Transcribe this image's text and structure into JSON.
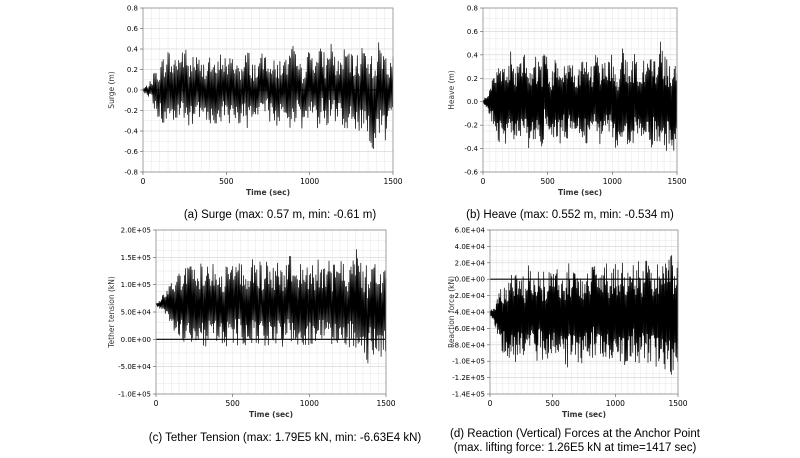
{
  "chart_data": [
    {
      "id": "surge",
      "type": "line",
      "caption": "(a) Surge (max: 0.57 m, min: -0.61 m)",
      "xlabel": "Time (sec)",
      "ylabel": "Surge (m)",
      "xlim": [
        0,
        1500
      ],
      "ylim": [
        -0.8,
        0.8
      ],
      "xticks": [
        0,
        500,
        1000,
        1500
      ],
      "xtick_labels": [
        "0",
        "500",
        "1000",
        "1500"
      ],
      "yticks": [
        -0.8,
        -0.6,
        -0.4,
        -0.2,
        0.0,
        0.2,
        0.4,
        0.6,
        0.8
      ],
      "ytick_labels": [
        "-0.8",
        "-0.6",
        "-0.4",
        "-0.2",
        "0.0",
        "0.2",
        "0.4",
        "0.6",
        "0.8"
      ],
      "grid": true,
      "baseline": 0,
      "series": [
        {
          "x": [
            0,
            25,
            50,
            75,
            100,
            125,
            150,
            175,
            200,
            225,
            250,
            275,
            300,
            325,
            350,
            375,
            400,
            425,
            450,
            475,
            500,
            525,
            550,
            575,
            600,
            625,
            650,
            675,
            700,
            725,
            750,
            775,
            800,
            825,
            850,
            875,
            900,
            925,
            950,
            975,
            1000,
            1025,
            1050,
            1075,
            1100,
            1125,
            1150,
            1175,
            1200,
            1225,
            1250,
            1275,
            1300,
            1325,
            1350,
            1375,
            1400,
            1425,
            1450,
            1475,
            1500
          ],
          "max": [
            0.02,
            0.05,
            0.1,
            0.22,
            0.25,
            0.35,
            0.42,
            0.3,
            0.38,
            0.4,
            0.45,
            0.3,
            0.38,
            0.35,
            0.28,
            0.3,
            0.38,
            0.25,
            0.3,
            0.42,
            0.32,
            0.33,
            0.35,
            0.3,
            0.25,
            0.45,
            0.3,
            0.28,
            0.33,
            0.38,
            0.42,
            0.3,
            0.28,
            0.35,
            0.3,
            0.38,
            0.45,
            0.3,
            0.25,
            0.35,
            0.4,
            0.42,
            0.38,
            0.45,
            0.3,
            0.57,
            0.35,
            0.3,
            0.38,
            0.45,
            0.35,
            0.3,
            0.42,
            0.5,
            0.48,
            0.35,
            0.45,
            0.5,
            0.42,
            0.4,
            0.35
          ],
          "min": [
            -0.02,
            -0.05,
            -0.1,
            -0.25,
            -0.3,
            -0.38,
            -0.35,
            -0.3,
            -0.38,
            -0.35,
            -0.3,
            -0.42,
            -0.38,
            -0.3,
            -0.35,
            -0.28,
            -0.32,
            -0.4,
            -0.3,
            -0.35,
            -0.3,
            -0.36,
            -0.3,
            -0.34,
            -0.28,
            -0.42,
            -0.3,
            -0.35,
            -0.3,
            -0.35,
            -0.32,
            -0.3,
            -0.4,
            -0.35,
            -0.3,
            -0.38,
            -0.35,
            -0.28,
            -0.42,
            -0.35,
            -0.3,
            -0.35,
            -0.38,
            -0.3,
            -0.4,
            -0.35,
            -0.32,
            -0.3,
            -0.35,
            -0.42,
            -0.3,
            -0.38,
            -0.48,
            -0.45,
            -0.52,
            -0.58,
            -0.61,
            -0.5,
            -0.55,
            -0.45,
            -0.4
          ]
        }
      ]
    },
    {
      "id": "heave",
      "type": "line",
      "caption": "(b) Heave (max: 0.552 m, min: -0.534 m)",
      "xlabel": "Time (sec)",
      "ylabel": "Heave (m)",
      "xlim": [
        0,
        1500
      ],
      "ylim": [
        -0.6,
        0.8
      ],
      "xticks": [
        0,
        500,
        1000,
        1500
      ],
      "xtick_labels": [
        "0",
        "500",
        "1000",
        "1500"
      ],
      "yticks": [
        -0.6,
        -0.4,
        -0.2,
        0.0,
        0.2,
        0.4,
        0.6,
        0.8
      ],
      "ytick_labels": [
        "-0.6",
        "-0.4",
        "-0.2",
        "0.0",
        "0.2",
        "0.4",
        "0.6",
        "0.8"
      ],
      "grid": true,
      "baseline": 0,
      "series": [
        {
          "x": [
            0,
            25,
            50,
            75,
            100,
            125,
            150,
            175,
            200,
            225,
            250,
            275,
            300,
            325,
            350,
            375,
            400,
            425,
            450,
            475,
            500,
            525,
            550,
            575,
            600,
            625,
            650,
            675,
            700,
            725,
            750,
            775,
            800,
            825,
            850,
            875,
            900,
            925,
            950,
            975,
            1000,
            1025,
            1050,
            1075,
            1100,
            1125,
            1150,
            1175,
            1200,
            1225,
            1250,
            1275,
            1300,
            1325,
            1350,
            1375,
            1400,
            1425,
            1450,
            1475,
            1500
          ],
          "max": [
            0.02,
            0.05,
            0.12,
            0.2,
            0.25,
            0.3,
            0.35,
            0.28,
            0.4,
            0.45,
            0.35,
            0.3,
            0.38,
            0.42,
            0.3,
            0.28,
            0.4,
            0.35,
            0.32,
            0.45,
            0.38,
            0.3,
            0.35,
            0.4,
            0.3,
            0.38,
            0.35,
            0.42,
            0.3,
            0.35,
            0.28,
            0.4,
            0.38,
            0.32,
            0.35,
            0.45,
            0.3,
            0.35,
            0.4,
            0.38,
            0.42,
            0.35,
            0.3,
            0.48,
            0.4,
            0.35,
            0.38,
            0.42,
            0.3,
            0.35,
            0.4,
            0.38,
            0.45,
            0.4,
            0.35,
            0.552,
            0.42,
            0.38,
            0.35,
            0.4,
            0.3
          ],
          "min": [
            -0.02,
            -0.05,
            -0.12,
            -0.2,
            -0.3,
            -0.35,
            -0.32,
            -0.38,
            -0.35,
            -0.3,
            -0.4,
            -0.35,
            -0.3,
            -0.38,
            -0.42,
            -0.3,
            -0.35,
            -0.32,
            -0.4,
            -0.3,
            -0.38,
            -0.35,
            -0.3,
            -0.4,
            -0.35,
            -0.3,
            -0.38,
            -0.32,
            -0.4,
            -0.35,
            -0.3,
            -0.38,
            -0.35,
            -0.4,
            -0.3,
            -0.35,
            -0.38,
            -0.4,
            -0.3,
            -0.35,
            -0.32,
            -0.4,
            -0.38,
            -0.35,
            -0.3,
            -0.4,
            -0.35,
            -0.38,
            -0.3,
            -0.42,
            -0.35,
            -0.38,
            -0.4,
            -0.35,
            -0.45,
            -0.3,
            -0.534,
            -0.4,
            -0.38,
            -0.45,
            -0.35
          ]
        }
      ]
    },
    {
      "id": "tether",
      "type": "line",
      "caption": "(c) Tether Tension (max: 1.79E5 kN, min: -6.63E4 kN)",
      "xlabel": "Time (sec)",
      "ylabel": "Tether tension (kN)",
      "xlim": [
        0,
        1500
      ],
      "ylim": [
        -100000,
        200000
      ],
      "xticks": [
        0,
        500,
        1000,
        1500
      ],
      "xtick_labels": [
        "0",
        "500",
        "1000",
        "1500"
      ],
      "yticks": [
        -100000,
        -50000,
        0,
        50000,
        100000,
        150000,
        200000
      ],
      "ytick_labels": [
        "-1.0E+05",
        "-5.0E+04",
        "0.0E+00",
        "5.0E+04",
        "1.0E+05",
        "1.5E+05",
        "2.0E+05"
      ],
      "grid": true,
      "baseline": 0,
      "series": [
        {
          "x": [
            0,
            25,
            50,
            75,
            100,
            125,
            150,
            175,
            200,
            225,
            250,
            275,
            300,
            325,
            350,
            375,
            400,
            425,
            450,
            475,
            500,
            525,
            550,
            575,
            600,
            625,
            650,
            675,
            700,
            725,
            750,
            775,
            800,
            825,
            850,
            875,
            900,
            925,
            950,
            975,
            1000,
            1025,
            1050,
            1075,
            1100,
            1125,
            1150,
            1175,
            1200,
            1225,
            1250,
            1275,
            1300,
            1325,
            1350,
            1375,
            1400,
            1425,
            1450,
            1475,
            1500
          ],
          "max": [
            68000,
            72000,
            85000,
            100000,
            110000,
            120000,
            125000,
            130000,
            140000,
            150000,
            135000,
            125000,
            150000,
            140000,
            130000,
            145000,
            130000,
            125000,
            140000,
            150000,
            135000,
            160000,
            140000,
            130000,
            125000,
            150000,
            135000,
            145000,
            130000,
            150000,
            140000,
            135000,
            150000,
            130000,
            140000,
            165000,
            135000,
            140000,
            150000,
            130000,
            145000,
            135000,
            150000,
            140000,
            130000,
            150000,
            135000,
            145000,
            140000,
            150000,
            130000,
            145000,
            179000,
            150000,
            140000,
            135000,
            150000,
            145000,
            130000,
            140000,
            135000
          ],
          "min": [
            62000,
            55000,
            45000,
            30000,
            20000,
            5000,
            0,
            -5000,
            -10000,
            0,
            -15000,
            -5000,
            -10000,
            -20000,
            -10000,
            -5000,
            -15000,
            -10000,
            -20000,
            -5000,
            -10000,
            -15000,
            -5000,
            -10000,
            -20000,
            -10000,
            -5000,
            -15000,
            -10000,
            -20000,
            -5000,
            -10000,
            -15000,
            -20000,
            -10000,
            -5000,
            -15000,
            -10000,
            -20000,
            -15000,
            -10000,
            -20000,
            -15000,
            -10000,
            -5000,
            -15000,
            -20000,
            -10000,
            -15000,
            -5000,
            -20000,
            -10000,
            -30000,
            -20000,
            -15000,
            -66300,
            -25000,
            -30000,
            -20000,
            -40000,
            -35000
          ]
        }
      ]
    },
    {
      "id": "reaction",
      "type": "line",
      "caption_lines": [
        "(d) Reaction (Vertical) Forces at the Anchor Point",
        "(max. lifting force: 1.26E5 kN at time=1417 sec)"
      ],
      "xlabel": "Time (sec)",
      "ylabel": "Reaction force (kN)",
      "xlim": [
        0,
        1500
      ],
      "ylim": [
        -140000,
        60000
      ],
      "xticks": [
        0,
        500,
        1000,
        1500
      ],
      "xtick_labels": [
        "0",
        "500",
        "1000",
        "1500"
      ],
      "yticks": [
        -140000,
        -120000,
        -100000,
        -80000,
        -60000,
        -40000,
        -20000,
        0,
        20000,
        40000,
        60000
      ],
      "ytick_labels": [
        "-1.4E+05",
        "-1.2E+05",
        "-1.0E+05",
        "-8.0E+04",
        "-6.0E+04",
        "-4.0E+04",
        "-2.0E+04",
        "0.0E+00",
        "2.0E+04",
        "4.0E+04",
        "6.0E+04"
      ],
      "grid": true,
      "baseline": 0,
      "series": [
        {
          "x": [
            0,
            25,
            50,
            75,
            100,
            125,
            150,
            175,
            200,
            225,
            250,
            275,
            300,
            325,
            350,
            375,
            400,
            425,
            450,
            475,
            500,
            525,
            550,
            575,
            600,
            625,
            650,
            675,
            700,
            725,
            750,
            775,
            800,
            825,
            850,
            875,
            900,
            925,
            950,
            975,
            1000,
            1025,
            1050,
            1075,
            1100,
            1125,
            1150,
            1175,
            1200,
            1225,
            1250,
            1275,
            1300,
            1325,
            1350,
            1375,
            1400,
            1425,
            1450,
            1475,
            1500
          ],
          "max": [
            -38000,
            -35000,
            -25000,
            -15000,
            -5000,
            0,
            5000,
            10000,
            5000,
            15000,
            10000,
            5000,
            20000,
            10000,
            15000,
            5000,
            20000,
            10000,
            5000,
            15000,
            10000,
            20000,
            5000,
            15000,
            10000,
            25000,
            15000,
            10000,
            20000,
            5000,
            15000,
            20000,
            10000,
            30000,
            15000,
            10000,
            20000,
            25000,
            15000,
            10000,
            20000,
            15000,
            25000,
            10000,
            20000,
            30000,
            15000,
            20000,
            25000,
            10000,
            30000,
            20000,
            15000,
            25000,
            20000,
            30000,
            25000,
            45000,
            30000,
            20000,
            25000
          ],
          "min": [
            -45000,
            -52000,
            -65000,
            -80000,
            -90000,
            -95000,
            -100000,
            -95000,
            -105000,
            -100000,
            -95000,
            -110000,
            -100000,
            -95000,
            -105000,
            -100000,
            -95000,
            -110000,
            -100000,
            -105000,
            -95000,
            -110000,
            -100000,
            -95000,
            -105000,
            -110000,
            -100000,
            -95000,
            -105000,
            -100000,
            -110000,
            -95000,
            -105000,
            -100000,
            -110000,
            -95000,
            -105000,
            -100000,
            -110000,
            -105000,
            -95000,
            -110000,
            -100000,
            -105000,
            -110000,
            -100000,
            -95000,
            -110000,
            -105000,
            -100000,
            -110000,
            -105000,
            -100000,
            -110000,
            -105000,
            -115000,
            -110000,
            -126000,
            -115000,
            -110000,
            -105000
          ]
        }
      ]
    }
  ]
}
